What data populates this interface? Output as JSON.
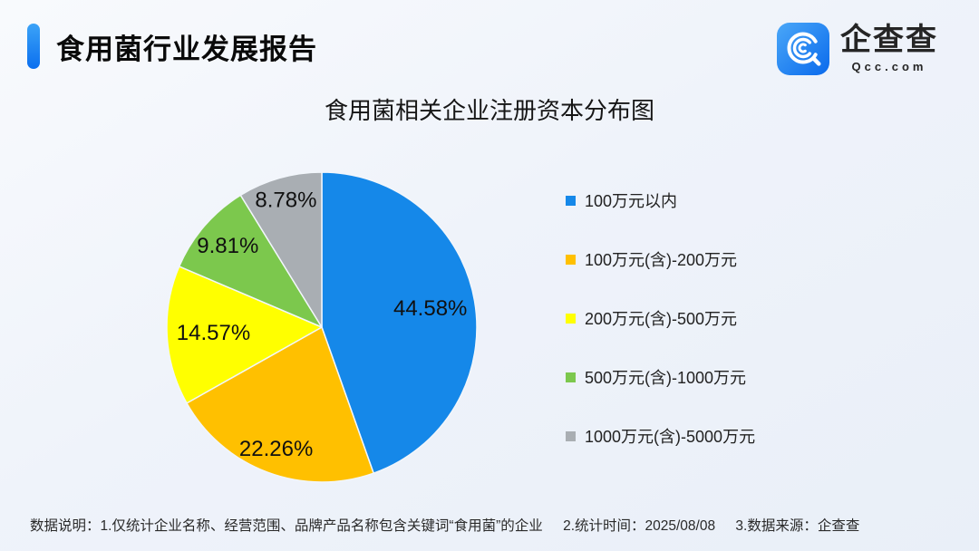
{
  "header": {
    "title": "食用菌行业发展报告",
    "logo": {
      "brand": "企查查",
      "domain": "Qcc.com",
      "icon_gradient": [
        "#4aa7f8",
        "#0a6aec"
      ]
    }
  },
  "chart_data": {
    "type": "pie",
    "title": "食用菌相关企业注册资本分布图",
    "categories": [
      "100万元以内",
      "100万元(含)-200万元",
      "200万元(含)-500万元",
      "500万元(含)-1000万元",
      "1000万元(含)-5000万元"
    ],
    "values": [
      44.58,
      22.26,
      14.57,
      9.81,
      8.78
    ],
    "value_labels": [
      "44.58%",
      "22.26%",
      "14.57%",
      "9.81%",
      "8.78%"
    ],
    "unit": "%",
    "colors": [
      "#1588e9",
      "#ffc000",
      "#ffff00",
      "#7cc84d",
      "#a9aeb3"
    ],
    "legend_position": "right",
    "start_angle_deg_from_top": 0,
    "direction": "clockwise",
    "label_position": "inside",
    "label_radius_factors": [
      0.71,
      0.84,
      0.7,
      0.8,
      0.85
    ],
    "slice_separator_color": "#f2f6fb"
  },
  "footer": {
    "notes": [
      "数据说明：1.仅统计企业名称、经营范围、品牌产品名称包含关键词“食用菌”的企业",
      "2.统计时间：2025/08/08",
      "3.数据来源：企查查"
    ]
  }
}
